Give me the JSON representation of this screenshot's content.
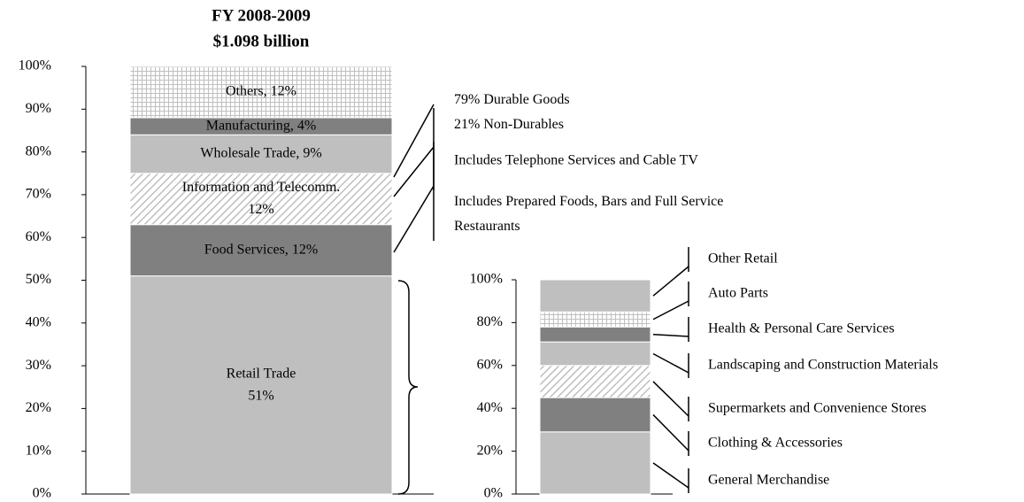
{
  "chart_data": [
    {
      "type": "stacked_bar",
      "title": "FY 2008-2009",
      "subtitle": "$1.098 billion",
      "ylim": [
        0,
        100
      ],
      "yticks": [
        {
          "value": 0,
          "label": "0%"
        },
        {
          "value": 10,
          "label": "10%"
        },
        {
          "value": 20,
          "label": "20%"
        },
        {
          "value": 30,
          "label": "30%"
        },
        {
          "value": 40,
          "label": "40%"
        },
        {
          "value": 50,
          "label": "50%"
        },
        {
          "value": 60,
          "label": "60%"
        },
        {
          "value": 70,
          "label": "70%"
        },
        {
          "value": 80,
          "label": "80%"
        },
        {
          "value": 90,
          "label": "90%"
        },
        {
          "value": 100,
          "label": "100%"
        }
      ],
      "series": [
        {
          "values": [
            51
          ],
          "value_labels": [
            "Retail Trade\n51%"
          ],
          "color": "#bfbfbf",
          "label_color": "#000000"
        },
        {
          "values": [
            12
          ],
          "value_labels": [
            "Food Services, 12%"
          ],
          "color": "#808080",
          "label_color": "#ffffff"
        },
        {
          "values": [
            12
          ],
          "value_labels": [
            "Information and Telecomm.\n12%"
          ],
          "color": "#bfbfbf",
          "pattern": "diagonal",
          "label_color": "#000000"
        },
        {
          "values": [
            9
          ],
          "value_labels": [
            "Wholesale Trade, 9%"
          ],
          "color": "#bfbfbf",
          "label_color": "#000000"
        },
        {
          "values": [
            4
          ],
          "value_labels": [
            "Manufacturing, 4%"
          ],
          "color": "#808080",
          "label_color": "#ffffff"
        },
        {
          "values": [
            12
          ],
          "value_labels": [
            "Others, 12%"
          ],
          "color": "#bfbfbf",
          "pattern": "grid",
          "label_color": "#000000"
        }
      ],
      "annotations": [
        "79% Durable Goods\n21% Non-Durables",
        "Includes Telephone Services and Cable TV",
        "Includes Prepared Foods, Bars and Full Service\nRestaurants"
      ]
    },
    {
      "type": "stacked_bar",
      "ylim": [
        0,
        100
      ],
      "yticks": [
        {
          "value": 0,
          "label": "0%"
        },
        {
          "value": 20,
          "label": "20%"
        },
        {
          "value": 40,
          "label": "40%"
        },
        {
          "value": 60,
          "label": "60%"
        },
        {
          "value": 80,
          "label": "80%"
        },
        {
          "value": 100,
          "label": "100%"
        }
      ],
      "series": [
        {
          "name": "General Merchandise",
          "values": [
            29
          ],
          "color": "#bfbfbf"
        },
        {
          "name": "Clothing & Accessories",
          "values": [
            16
          ],
          "color": "#808080"
        },
        {
          "name": "Supermarkets and Convenience Stores",
          "values": [
            15
          ],
          "color": "#bfbfbf",
          "pattern": "diagonal"
        },
        {
          "name": "Landscaping and Construction Materials",
          "values": [
            11
          ],
          "color": "#bfbfbf"
        },
        {
          "name": "Health & Personal Care Services",
          "values": [
            7
          ],
          "color": "#808080"
        },
        {
          "name": "Auto Parts",
          "values": [
            7
          ],
          "color": "#bfbfbf",
          "pattern": "grid"
        },
        {
          "name": "Other Retail",
          "values": [
            15
          ],
          "color": "#bfbfbf"
        }
      ]
    }
  ]
}
